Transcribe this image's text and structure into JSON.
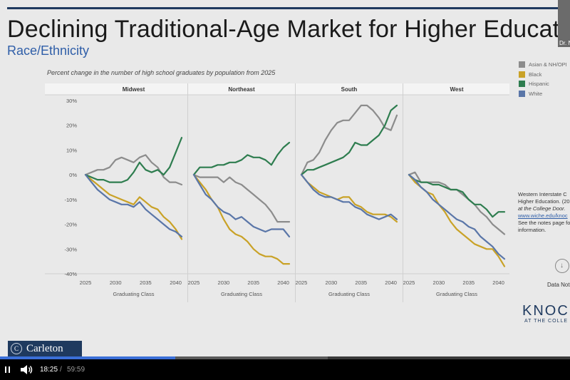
{
  "slide": {
    "title": "Declining Traditional-Age Market for Higher Educati",
    "subtitle": "Race/Ethnicity",
    "presenter_label": "Dr. N",
    "source_lines": [
      "Western Interstate C",
      "Higher Education. (20",
      "at the College Door.",
      "www.wiche.edu/knoc",
      "See the notes page fo",
      "information."
    ],
    "data_notes": "Data Not",
    "brand": "KNOCK",
    "brand_sub": "AT THE COLLE",
    "footer_logo": "Carleton"
  },
  "player": {
    "current_time": "18:25",
    "separator": "/",
    "duration": "59:59",
    "progress": 0.307,
    "buffered": 0.575,
    "progress_color": "#3b6fd8"
  },
  "icons": {
    "pause": "pause-icon",
    "volume": "volume-icon",
    "download": "download-icon"
  },
  "chart_data": {
    "type": "line",
    "title": "Percent change in the number of high school graduates by population from 2025",
    "xlabel": "Graduating Class",
    "ylabel": "",
    "ylim": [
      -40,
      30
    ],
    "yticks": [
      "30%",
      "20%",
      "10%",
      "0%",
      "-10%",
      "-20%",
      "-30%",
      "-40%"
    ],
    "xticks": [
      "2025",
      "2030",
      "2035",
      "2040"
    ],
    "legend_placement": "right",
    "legend": [
      {
        "name": "Asian & NH/OPI",
        "color": "#8c8c8c"
      },
      {
        "name": "Black",
        "color": "#c9a227"
      },
      {
        "name": "Hispanic",
        "color": "#2e7d4f"
      },
      {
        "name": "White",
        "color": "#5a76a8"
      }
    ],
    "x": [
      2025,
      2026,
      2027,
      2028,
      2029,
      2030,
      2031,
      2032,
      2033,
      2034,
      2035,
      2036,
      2037,
      2038,
      2039,
      2040,
      2041
    ],
    "panels": [
      {
        "name": "Midwest",
        "series": [
          {
            "name": "Asian & NH/OPI",
            "values": [
              0,
              1,
              2,
              2,
              3,
              6,
              7,
              6,
              5,
              7,
              8,
              5,
              3,
              -1,
              -3,
              -3,
              -4
            ]
          },
          {
            "name": "Black",
            "values": [
              0,
              -2,
              -4,
              -6,
              -8,
              -9,
              -10,
              -11,
              -12,
              -9,
              -11,
              -13,
              -14,
              -17,
              -19,
              -22,
              -26
            ]
          },
          {
            "name": "Hispanic",
            "values": [
              0,
              -1,
              -2,
              -2,
              -3,
              -3,
              -3,
              -2,
              1,
              5,
              2,
              1,
              2,
              0,
              3,
              9,
              15
            ]
          },
          {
            "name": "White",
            "values": [
              0,
              -3,
              -6,
              -8,
              -10,
              -11,
              -12,
              -12,
              -13,
              -11,
              -14,
              -16,
              -18,
              -20,
              -22,
              -23,
              -25
            ]
          }
        ]
      },
      {
        "name": "Northeast",
        "series": [
          {
            "name": "Asian & NH/OPI",
            "values": [
              0,
              -1,
              -1,
              -1,
              -1,
              -3,
              -1,
              -3,
              -4,
              -6,
              -8,
              -10,
              -12,
              -15,
              -19,
              -19,
              -19
            ]
          },
          {
            "name": "Black",
            "values": [
              0,
              -3,
              -6,
              -10,
              -13,
              -18,
              -22,
              -24,
              -25,
              -27,
              -30,
              -32,
              -33,
              -33,
              -34,
              -36,
              -36
            ]
          },
          {
            "name": "Hispanic",
            "values": [
              0,
              3,
              3,
              3,
              4,
              4,
              5,
              5,
              6,
              8,
              7,
              7,
              6,
              4,
              8,
              11,
              13
            ]
          },
          {
            "name": "White",
            "values": [
              0,
              -4,
              -8,
              -10,
              -13,
              -15,
              -16,
              -18,
              -17,
              -19,
              -21,
              -22,
              -23,
              -22,
              -22,
              -22,
              -25
            ]
          }
        ]
      },
      {
        "name": "South",
        "series": [
          {
            "name": "Asian & NH/OPI",
            "values": [
              0,
              5,
              6,
              9,
              14,
              18,
              21,
              22,
              22,
              25,
              28,
              28,
              26,
              23,
              19,
              18,
              24
            ]
          },
          {
            "name": "Black",
            "values": [
              0,
              -3,
              -5,
              -7,
              -8,
              -9,
              -10,
              -9,
              -9,
              -12,
              -13,
              -15,
              -16,
              -16,
              -16,
              -17,
              -19
            ]
          },
          {
            "name": "Hispanic",
            "values": [
              0,
              2,
              2,
              3,
              4,
              5,
              6,
              7,
              9,
              13,
              12,
              12,
              14,
              16,
              20,
              26,
              28
            ]
          },
          {
            "name": "White",
            "values": [
              0,
              -3,
              -6,
              -8,
              -9,
              -9,
              -10,
              -11,
              -11,
              -13,
              -14,
              -16,
              -17,
              -18,
              -17,
              -16,
              -18
            ]
          }
        ]
      },
      {
        "name": "West",
        "series": [
          {
            "name": "Asian & NH/OPI",
            "values": [
              0,
              1,
              -3,
              -3,
              -3,
              -3,
              -4,
              -6,
              -6,
              -8,
              -10,
              -12,
              -15,
              -17,
              -20,
              -22,
              -24
            ]
          },
          {
            "name": "Black",
            "values": [
              0,
              -3,
              -5,
              -7,
              -8,
              -12,
              -15,
              -19,
              -22,
              -24,
              -26,
              -28,
              -29,
              -30,
              -30,
              -33,
              -37
            ]
          },
          {
            "name": "Hispanic",
            "values": [
              0,
              -2,
              -3,
              -3,
              -4,
              -4,
              -5,
              -6,
              -6,
              -7,
              -10,
              -12,
              -12,
              -14,
              -17,
              -15,
              -15
            ]
          },
          {
            "name": "White",
            "values": [
              0,
              -2,
              -5,
              -7,
              -10,
              -12,
              -14,
              -16,
              -18,
              -19,
              -21,
              -22,
              -25,
              -27,
              -29,
              -32,
              -34
            ]
          }
        ]
      }
    ]
  }
}
